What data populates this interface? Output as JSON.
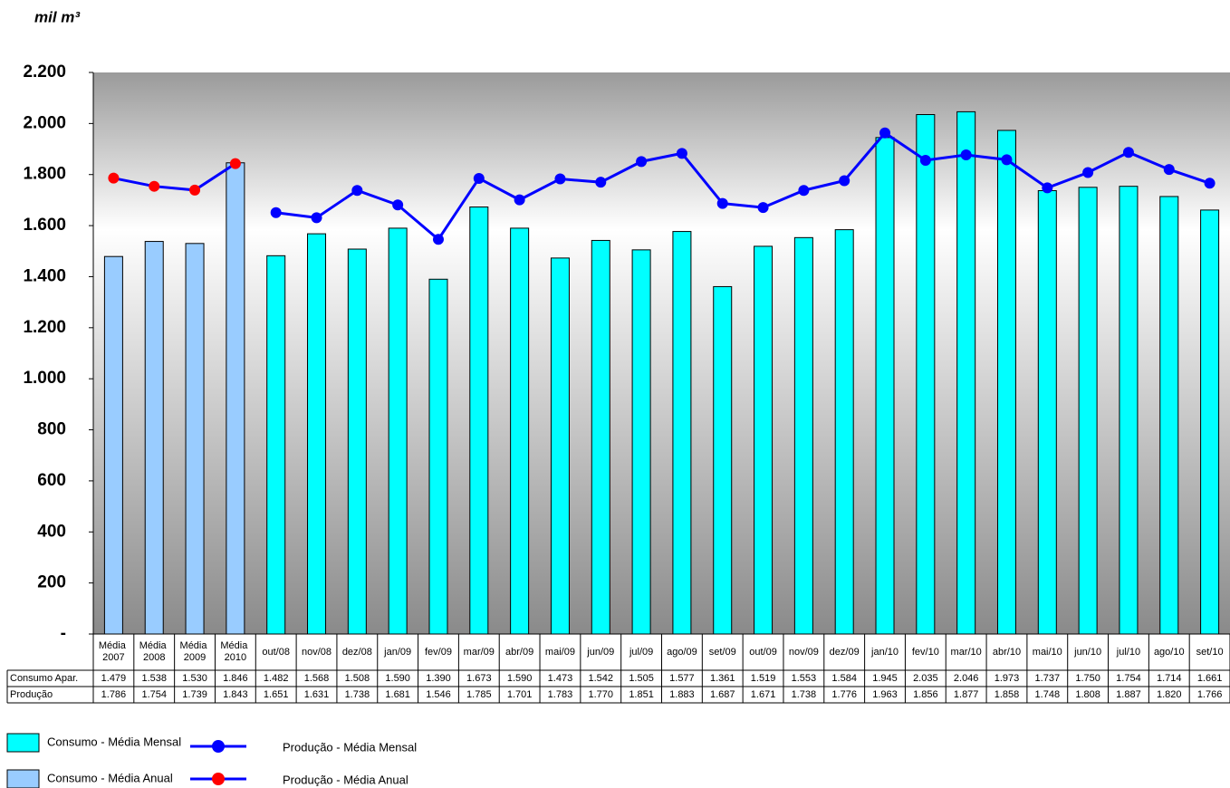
{
  "chart_data": {
    "type": "bar-line",
    "y_label": "mil m³",
    "categories": [
      "Média 2007",
      "Média 2008",
      "Média 2009",
      "Média 2010",
      "out/08",
      "nov/08",
      "dez/08",
      "jan/09",
      "fev/09",
      "mar/09",
      "abr/09",
      "mai/09",
      "jun/09",
      "jul/09",
      "ago/09",
      "set/09",
      "out/09",
      "nov/09",
      "dez/09",
      "jan/10",
      "fev/10",
      "mar/10",
      "abr/10",
      "mai/10",
      "jun/10",
      "jul/10",
      "ago/10",
      "set/10"
    ],
    "table_rows": [
      "Consumo Apar.",
      "Produção"
    ],
    "ylim": [
      0,
      2200
    ],
    "yticks": [
      {
        "value": 0,
        "label": "-"
      },
      200,
      400,
      600,
      800,
      {
        "value": 1000,
        "label": "1.000"
      },
      {
        "value": 1200,
        "label": "1.200"
      },
      {
        "value": 1400,
        "label": "1.400"
      },
      {
        "value": 1600,
        "label": "1.600"
      },
      {
        "value": 1800,
        "label": "1.800"
      },
      {
        "value": 2000,
        "label": "2.000"
      },
      {
        "value": 2200,
        "label": "2.200"
      }
    ],
    "series": [
      {
        "name": "Consumo - Média Mensal",
        "type": "bar",
        "color": "#00ffff",
        "values": [
          null,
          null,
          null,
          null,
          1482,
          1568,
          1508,
          1590,
          1390,
          1673,
          1590,
          1473,
          1542,
          1505,
          1577,
          1361,
          1519,
          1553,
          1584,
          1945,
          2035,
          2046,
          1973,
          1737,
          1750,
          1754,
          1714,
          1661
        ],
        "value_labels": [
          null,
          null,
          null,
          null,
          "1.482",
          "1.568",
          "1.508",
          "1.590",
          "1.390",
          "1.673",
          "1.590",
          "1.473",
          "1.542",
          "1.505",
          "1.577",
          "1.361",
          "1.519",
          "1.553",
          "1.584",
          "1.945",
          "2.035",
          "2.046",
          "1.973",
          "1.737",
          "1.750",
          "1.754",
          "1.714",
          "1.661"
        ]
      },
      {
        "name": "Consumo - Média Anual",
        "type": "bar",
        "color": "#99ccff",
        "values": [
          1479,
          1538,
          1530,
          1846,
          null,
          null,
          null,
          null,
          null,
          null,
          null,
          null,
          null,
          null,
          null,
          null,
          null,
          null,
          null,
          null,
          null,
          null,
          null,
          null,
          null,
          null,
          null,
          null
        ],
        "value_labels": [
          "1.479",
          "1.538",
          "1.530",
          "1.846",
          null,
          null,
          null,
          null,
          null,
          null,
          null,
          null,
          null,
          null,
          null,
          null,
          null,
          null,
          null,
          null,
          null,
          null,
          null,
          null,
          null,
          null,
          null,
          null
        ]
      },
      {
        "name": "Produção - Média Mensal",
        "type": "line",
        "color": "#0000ff",
        "marker_color": "#0000ff",
        "values": [
          null,
          null,
          null,
          null,
          1651,
          1631,
          1738,
          1681,
          1546,
          1785,
          1701,
          1783,
          1770,
          1851,
          1883,
          1687,
          1671,
          1738,
          1776,
          1963,
          1856,
          1877,
          1858,
          1748,
          1808,
          1887,
          1820,
          1766
        ],
        "value_labels": [
          null,
          null,
          null,
          null,
          "1.651",
          "1.631",
          "1.738",
          "1.681",
          "1.546",
          "1.785",
          "1.701",
          "1.783",
          "1.770",
          "1.851",
          "1.883",
          "1.687",
          "1.671",
          "1.738",
          "1.776",
          "1.963",
          "1.856",
          "1.877",
          "1.858",
          "1.748",
          "1.808",
          "1.887",
          "1.820",
          "1.766"
        ]
      },
      {
        "name": "Produção - Média Anual",
        "type": "line",
        "color": "#0000ff",
        "marker_color": "#ff0000",
        "values": [
          1786,
          1754,
          1739,
          1843,
          null,
          null,
          null,
          null,
          null,
          null,
          null,
          null,
          null,
          null,
          null,
          null,
          null,
          null,
          null,
          null,
          null,
          null,
          null,
          null,
          null,
          null,
          null,
          null
        ],
        "value_labels": [
          "1.786",
          "1.754",
          "1.739",
          "1.843",
          null,
          null,
          null,
          null,
          null,
          null,
          null,
          null,
          null,
          null,
          null,
          null,
          null,
          null,
          null,
          null,
          null,
          null,
          null,
          null,
          null,
          null,
          null,
          null
        ]
      }
    ]
  }
}
